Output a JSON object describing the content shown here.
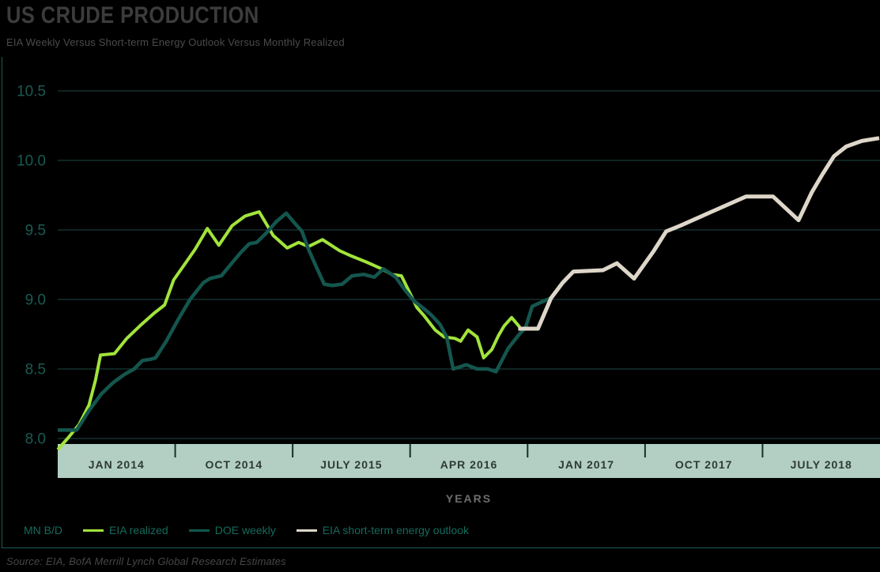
{
  "header": {
    "title": "US CRUDE PRODUCTION",
    "subtitle": "EIA Weekly Versus Short-term Energy Outlook Versus Monthly Realized"
  },
  "colors": {
    "background": "#000000",
    "gridline": "#1e4944",
    "y_axis_label": "#1a5a52",
    "band": "#b3cfc4",
    "band_text": "#2e3a36",
    "band_tick": "#12312c",
    "frame_rule": "#1d5c55",
    "legend_text": "#156a5c",
    "series_green": "#a2e43b",
    "series_teal": "#14564e",
    "series_beige": "#ded7c9"
  },
  "chart_data": {
    "type": "line",
    "title": "US CRUDE PRODUCTION",
    "subtitle": "EIA Weekly Versus Short-term Energy Outlook Versus Monthly Realized",
    "xlabel": "YEARS",
    "ylabel": "MN B/D",
    "grid": "horizontal",
    "legend_position": "bottom-left",
    "ylim": [
      7.9,
      10.55
    ],
    "y_ticks": [
      {
        "value": 8.0,
        "label": "8.0"
      },
      {
        "value": 8.5,
        "label": "8.5"
      },
      {
        "value": 9.0,
        "label": "9.0"
      },
      {
        "value": 9.5,
        "label": "9.5"
      },
      {
        "value": 10.0,
        "label": "10.0"
      },
      {
        "value": 10.5,
        "label": "10.5"
      }
    ],
    "x_tick_labels": [
      "JAN 2014",
      "OCT 2014",
      "JULY 2015",
      "APR 2016",
      "JAN 2017",
      "OCT 2017",
      "JULY 2018"
    ],
    "series": [
      {
        "name": "EIA realized",
        "color": "#a2e43b",
        "width": 4,
        "points": [
          [
            0.0,
            7.92
          ],
          [
            0.012,
            8.0
          ],
          [
            0.026,
            8.1
          ],
          [
            0.038,
            8.24
          ],
          [
            0.046,
            8.42
          ],
          [
            0.052,
            8.6
          ],
          [
            0.069,
            8.61
          ],
          [
            0.084,
            8.72
          ],
          [
            0.1,
            8.81
          ],
          [
            0.117,
            8.9
          ],
          [
            0.13,
            8.96
          ],
          [
            0.141,
            9.14
          ],
          [
            0.154,
            9.25
          ],
          [
            0.167,
            9.36
          ],
          [
            0.182,
            9.51
          ],
          [
            0.196,
            9.39
          ],
          [
            0.212,
            9.53
          ],
          [
            0.228,
            9.6
          ],
          [
            0.245,
            9.63
          ],
          [
            0.262,
            9.46
          ],
          [
            0.279,
            9.37
          ],
          [
            0.293,
            9.41
          ],
          [
            0.305,
            9.38
          ],
          [
            0.322,
            9.43
          ],
          [
            0.343,
            9.35
          ],
          [
            0.358,
            9.31
          ],
          [
            0.375,
            9.27
          ],
          [
            0.394,
            9.22
          ],
          [
            0.406,
            9.18
          ],
          [
            0.418,
            9.17
          ],
          [
            0.428,
            9.05
          ],
          [
            0.437,
            8.94
          ],
          [
            0.446,
            8.88
          ],
          [
            0.459,
            8.78
          ],
          [
            0.47,
            8.73
          ],
          [
            0.483,
            8.72
          ],
          [
            0.49,
            8.7
          ],
          [
            0.499,
            8.78
          ],
          [
            0.51,
            8.73
          ],
          [
            0.518,
            8.58
          ],
          [
            0.528,
            8.64
          ],
          [
            0.536,
            8.74
          ],
          [
            0.543,
            8.81
          ],
          [
            0.552,
            8.87
          ],
          [
            0.562,
            8.8
          ]
        ]
      },
      {
        "name": "DOE weekly",
        "color": "#14564e",
        "width": 4.5,
        "points": [
          [
            0.0,
            8.06
          ],
          [
            0.023,
            8.06
          ],
          [
            0.038,
            8.2
          ],
          [
            0.053,
            8.32
          ],
          [
            0.067,
            8.4
          ],
          [
            0.081,
            8.46
          ],
          [
            0.093,
            8.5
          ],
          [
            0.103,
            8.56
          ],
          [
            0.113,
            8.57
          ],
          [
            0.119,
            8.58
          ],
          [
            0.132,
            8.7
          ],
          [
            0.146,
            8.85
          ],
          [
            0.161,
            9.0
          ],
          [
            0.177,
            9.12
          ],
          [
            0.185,
            9.15
          ],
          [
            0.199,
            9.17
          ],
          [
            0.213,
            9.27
          ],
          [
            0.223,
            9.34
          ],
          [
            0.233,
            9.4
          ],
          [
            0.242,
            9.41
          ],
          [
            0.254,
            9.48
          ],
          [
            0.266,
            9.56
          ],
          [
            0.278,
            9.62
          ],
          [
            0.288,
            9.55
          ],
          [
            0.297,
            9.49
          ],
          [
            0.305,
            9.36
          ],
          [
            0.314,
            9.24
          ],
          [
            0.324,
            9.11
          ],
          [
            0.334,
            9.1
          ],
          [
            0.346,
            9.11
          ],
          [
            0.358,
            9.17
          ],
          [
            0.372,
            9.18
          ],
          [
            0.385,
            9.16
          ],
          [
            0.396,
            9.22
          ],
          [
            0.411,
            9.16
          ],
          [
            0.422,
            9.07
          ],
          [
            0.433,
            8.99
          ],
          [
            0.444,
            8.94
          ],
          [
            0.454,
            8.89
          ],
          [
            0.465,
            8.82
          ],
          [
            0.473,
            8.73
          ],
          [
            0.481,
            8.5
          ],
          [
            0.497,
            8.53
          ],
          [
            0.51,
            8.5
          ],
          [
            0.523,
            8.5
          ],
          [
            0.533,
            8.48
          ],
          [
            0.548,
            8.65
          ],
          [
            0.56,
            8.74
          ],
          [
            0.569,
            8.8
          ],
          [
            0.577,
            8.95
          ],
          [
            0.588,
            8.98
          ],
          [
            0.6,
            9.01
          ]
        ]
      },
      {
        "name": "EIA short-term energy outlook",
        "color": "#ded7c9",
        "width": 5,
        "points": [
          [
            0.56,
            8.79
          ],
          [
            0.584,
            8.79
          ],
          [
            0.6,
            9.01
          ],
          [
            0.614,
            9.12
          ],
          [
            0.627,
            9.2
          ],
          [
            0.663,
            9.21
          ],
          [
            0.68,
            9.26
          ],
          [
            0.701,
            9.15
          ],
          [
            0.725,
            9.35
          ],
          [
            0.74,
            9.49
          ],
          [
            0.757,
            9.53
          ],
          [
            0.795,
            9.63
          ],
          [
            0.837,
            9.74
          ],
          [
            0.87,
            9.74
          ],
          [
            0.901,
            9.57
          ],
          [
            0.917,
            9.77
          ],
          [
            0.93,
            9.9
          ],
          [
            0.944,
            10.03
          ],
          [
            0.959,
            10.1
          ],
          [
            0.978,
            10.14
          ],
          [
            0.999,
            10.16
          ]
        ]
      }
    ]
  },
  "footer": {
    "source": "Source: EIA, BofA Merrill Lynch Global Research Estimates"
  }
}
